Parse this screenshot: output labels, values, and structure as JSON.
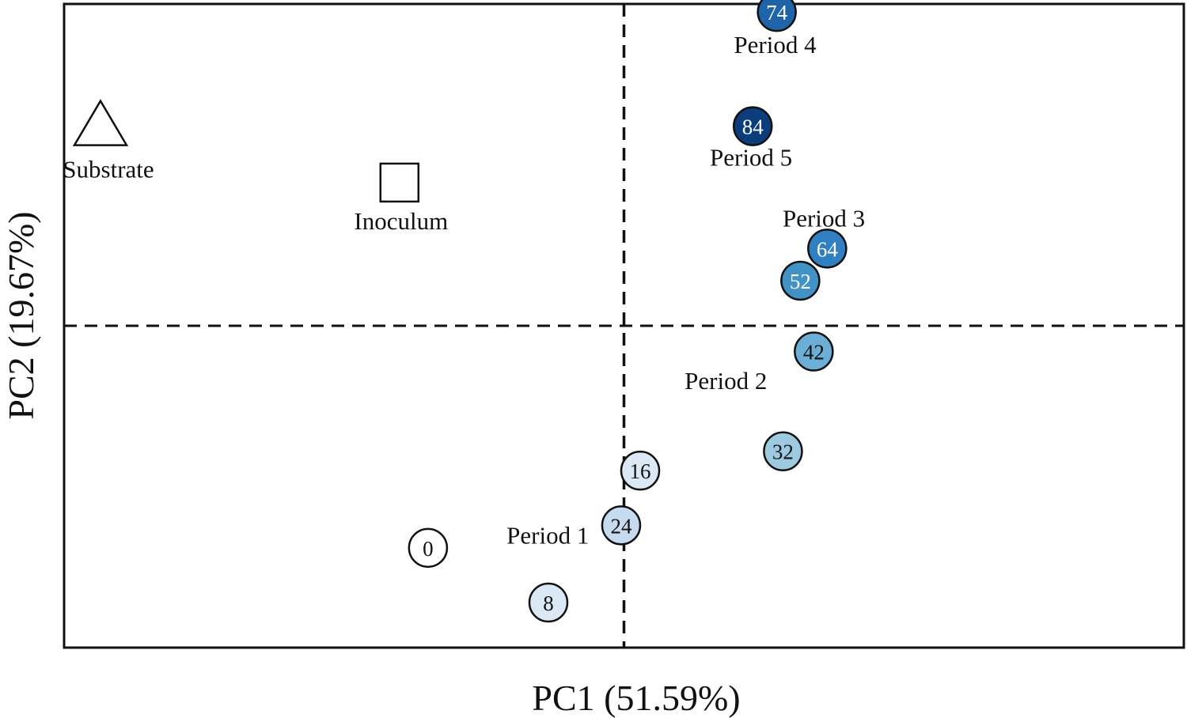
{
  "chart_data": {
    "type": "scatter",
    "xlabel": "PC1 (51.59%)",
    "ylabel": "PC2 (19.67%)",
    "xlim": [
      -1.0,
      1.0
    ],
    "ylim": [
      -1.0,
      1.0
    ],
    "grid": false,
    "reference_lines": {
      "x": 0,
      "y": 0,
      "style": "dashed"
    },
    "points": [
      {
        "label": "0",
        "x": -0.35,
        "y": -0.69,
        "color": "#ffffff"
      },
      {
        "label": "8",
        "x": -0.135,
        "y": -0.86,
        "color": "#dbe9f6"
      },
      {
        "label": "16",
        "x": 0.029,
        "y": -0.45,
        "color": "#dbe9f6"
      },
      {
        "label": "24",
        "x": -0.005,
        "y": -0.62,
        "color": "#c6dbef"
      },
      {
        "label": "32",
        "x": 0.284,
        "y": -0.39,
        "color": "#9ecae1"
      },
      {
        "label": "42",
        "x": 0.339,
        "y": -0.08,
        "color": "#6baed6"
      },
      {
        "label": "52",
        "x": 0.315,
        "y": 0.14,
        "color": "#4292c6"
      },
      {
        "label": "64",
        "x": 0.363,
        "y": 0.24,
        "color": "#2f7fc1"
      },
      {
        "label": "74",
        "x": 0.273,
        "y": 0.975,
        "color": "#1f64a8"
      },
      {
        "label": "84",
        "x": 0.23,
        "y": 0.62,
        "color": "#0b3d7a"
      }
    ],
    "reference_samples": [
      {
        "label": "Substrate",
        "marker": "triangle",
        "x": -0.935,
        "y": 0.63
      },
      {
        "label": "Inoculum",
        "marker": "square",
        "x": -0.401,
        "y": 0.445
      }
    ],
    "annotations": [
      {
        "text": "Period 1",
        "x": -0.136,
        "y": -0.65
      },
      {
        "text": "Period 2",
        "x": 0.182,
        "y": -0.17
      },
      {
        "text": "Period 3",
        "x": 0.357,
        "y": 0.335
      },
      {
        "text": "Period 4",
        "x": 0.27,
        "y": 0.875
      },
      {
        "text": "Period 5",
        "x": 0.227,
        "y": 0.525
      }
    ]
  }
}
